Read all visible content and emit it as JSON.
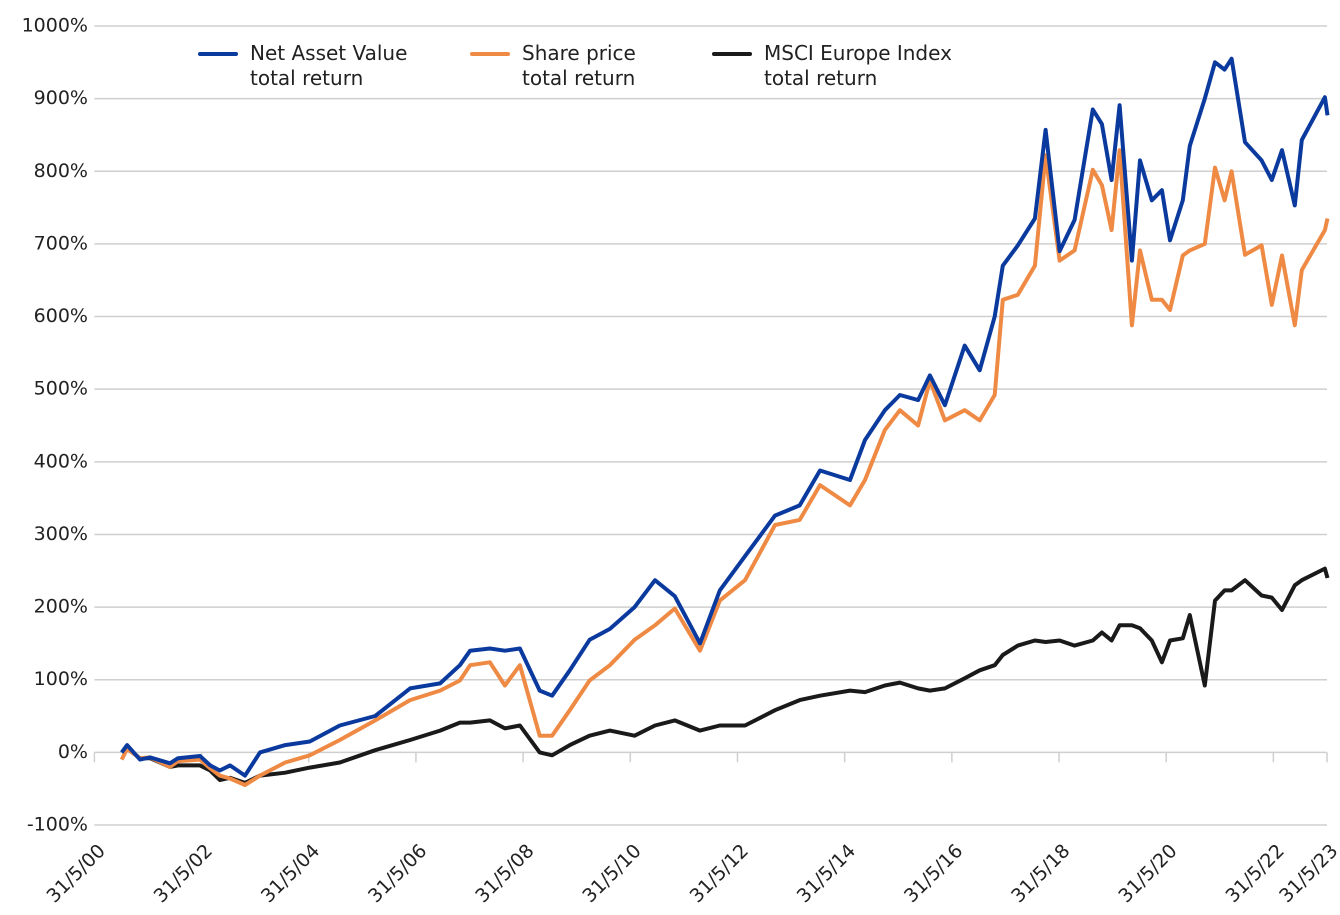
{
  "chart_data": {
    "type": "line",
    "x": [
      2000.92,
      2001.02,
      2001.26,
      2001.45,
      2001.82,
      2001.97,
      2002.38,
      2002.57,
      2002.75,
      2002.94,
      2003.22,
      2003.5,
      2003.97,
      2004.43,
      2004.99,
      2005.65,
      2006.3,
      2006.86,
      2007.23,
      2007.42,
      2007.79,
      2008.07,
      2008.35,
      2008.72,
      2008.95,
      2009.28,
      2009.65,
      2010.03,
      2010.49,
      2010.87,
      2011.24,
      2011.71,
      2012.08,
      2012.55,
      2013.11,
      2013.57,
      2013.95,
      2014.51,
      2014.79,
      2015.16,
      2015.44,
      2015.78,
      2016.0,
      2016.28,
      2016.65,
      2016.93,
      2017.21,
      2017.36,
      2017.64,
      2017.96,
      2018.16,
      2018.42,
      2018.7,
      2019.04,
      2019.21,
      2019.39,
      2019.54,
      2019.77,
      2019.92,
      2020.14,
      2020.33,
      2020.48,
      2020.72,
      2020.85,
      2021.13,
      2021.32,
      2021.5,
      2021.63,
      2021.88,
      2022.19,
      2022.38,
      2022.57,
      2022.81,
      2022.94,
      2023.37,
      2023.42
    ],
    "series": [
      {
        "name": "Net Asset Value total return",
        "color": "#0b3a9e",
        "values": [
          0,
          10,
          -10,
          -7,
          -15,
          -8,
          -5,
          -18,
          -25,
          -18,
          -32,
          0,
          10,
          15,
          37,
          50,
          88,
          95,
          120,
          140,
          143,
          140,
          143,
          85,
          78,
          113,
          155,
          170,
          200,
          237,
          215,
          150,
          223,
          270,
          326,
          340,
          388,
          375,
          430,
          471,
          492,
          485,
          519,
          478,
          560,
          526,
          600,
          670,
          698,
          735,
          857,
          690,
          733,
          885,
          865,
          788,
          891,
          677,
          815,
          760,
          774,
          705,
          760,
          835,
          900,
          950,
          940,
          955,
          840,
          815,
          788,
          829,
          753,
          843,
          902,
          877
        ]
      },
      {
        "name": "Share price total return",
        "color": "#ef8a45",
        "values": [
          -10,
          5,
          -8,
          -7,
          -20,
          -12,
          -10,
          -22,
          -32,
          -36,
          -45,
          -32,
          -14,
          -4,
          17,
          44,
          72,
          85,
          99,
          120,
          124,
          92,
          120,
          23,
          23,
          58,
          99,
          120,
          155,
          175,
          198,
          140,
          209,
          237,
          313,
          320,
          368,
          340,
          375,
          444,
          471,
          450,
          512,
          457,
          471,
          457,
          492,
          623,
          630,
          670,
          822,
          677,
          691,
          802,
          781,
          719,
          829,
          588,
          691,
          623,
          623,
          609,
          684,
          691,
          700,
          805,
          760,
          800,
          685,
          698,
          616,
          684,
          588,
          664,
          719,
          735
        ]
      },
      {
        "name": "MSCI Europe Index total return",
        "color": "#1a1a1a",
        "values": [
          0,
          5,
          -8,
          -8,
          -20,
          -18,
          -18,
          -25,
          -38,
          -35,
          -42,
          -32,
          -28,
          -21,
          -14,
          3,
          17,
          30,
          41,
          41,
          44,
          33,
          37,
          0,
          -4,
          10,
          23,
          30,
          23,
          37,
          44,
          30,
          37,
          37,
          58,
          72,
          78,
          85,
          83,
          92,
          96,
          88,
          85,
          88,
          102,
          113,
          120,
          134,
          147,
          154,
          152,
          154,
          147,
          154,
          165,
          154,
          175,
          175,
          171,
          154,
          124,
          154,
          157,
          189,
          92,
          209,
          223,
          223,
          237,
          216,
          213,
          196,
          230,
          237,
          253,
          240
        ]
      }
    ],
    "xlim": [
      2000.41,
      2023.41
    ],
    "xticks": [
      {
        "value": 2000.41,
        "label": "31/5/00"
      },
      {
        "value": 2002.41,
        "label": "31/5/02"
      },
      {
        "value": 2004.41,
        "label": "31/5/04"
      },
      {
        "value": 2006.41,
        "label": "31/5/06"
      },
      {
        "value": 2008.41,
        "label": "31/5/08"
      },
      {
        "value": 2010.41,
        "label": "31/5/10"
      },
      {
        "value": 2012.41,
        "label": "31/5/12"
      },
      {
        "value": 2014.41,
        "label": "31/5/14"
      },
      {
        "value": 2016.41,
        "label": "31/5/16"
      },
      {
        "value": 2018.41,
        "label": "31/5/18"
      },
      {
        "value": 2020.41,
        "label": "31/5/20"
      },
      {
        "value": 2022.41,
        "label": "31/5/22"
      },
      {
        "value": 2023.41,
        "label": "31/5/23"
      }
    ],
    "ylim": [
      -100,
      1000
    ],
    "yticks": [
      {
        "value": -100,
        "label": "-100%"
      },
      {
        "value": 0,
        "label": "0%"
      },
      {
        "value": 100,
        "label": "100%"
      },
      {
        "value": 200,
        "label": "200%"
      },
      {
        "value": 300,
        "label": "300%"
      },
      {
        "value": 400,
        "label": "400%"
      },
      {
        "value": 500,
        "label": "500%"
      },
      {
        "value": 600,
        "label": "600%"
      },
      {
        "value": 700,
        "label": "700%"
      },
      {
        "value": 800,
        "label": "800%"
      },
      {
        "value": 900,
        "label": "900%"
      },
      {
        "value": 1000,
        "label": "1000%"
      }
    ],
    "grid": true
  }
}
